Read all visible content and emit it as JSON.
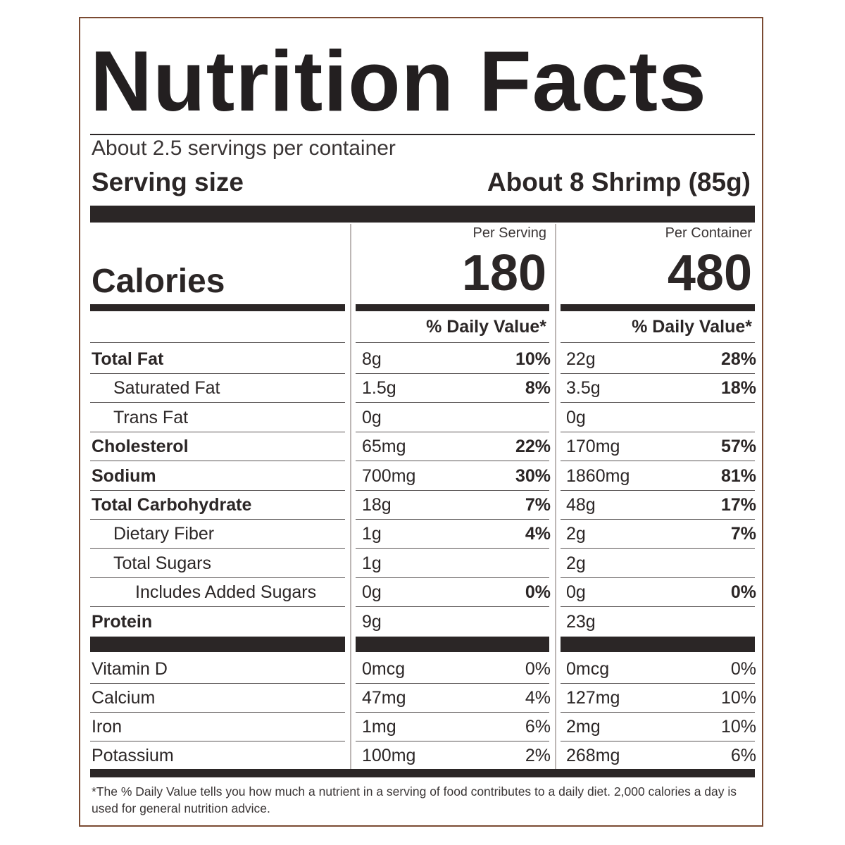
{
  "title": "Nutrition Facts",
  "servings_per_container": "About 2.5 servings per container",
  "serving_size_label": "Serving size",
  "serving_size_value": "About 8 Shrimp (85g)",
  "columns": {
    "per_serving": "Per Serving",
    "per_container": "Per Container"
  },
  "calories": {
    "label": "Calories",
    "per_serving": "180",
    "per_container": "480"
  },
  "daily_value_header": "% Daily Value*",
  "nutrients": [
    {
      "name": "Total Fat",
      "serving_amount": "8g",
      "serving_dv": "10%",
      "container_amount": "22g",
      "container_dv": "28%"
    },
    {
      "name": "Saturated Fat",
      "serving_amount": "1.5g",
      "serving_dv": "8%",
      "container_amount": "3.5g",
      "container_dv": "18%"
    },
    {
      "name": "Trans Fat",
      "serving_amount": "0g",
      "serving_dv": "",
      "container_amount": "0g",
      "container_dv": ""
    },
    {
      "name": "Cholesterol",
      "serving_amount": "65mg",
      "serving_dv": "22%",
      "container_amount": "170mg",
      "container_dv": "57%"
    },
    {
      "name": "Sodium",
      "serving_amount": "700mg",
      "serving_dv": "30%",
      "container_amount": "1860mg",
      "container_dv": "81%"
    },
    {
      "name": "Total Carbohydrate",
      "serving_amount": "18g",
      "serving_dv": "7%",
      "container_amount": "48g",
      "container_dv": "17%"
    },
    {
      "name": "Dietary Fiber",
      "serving_amount": "1g",
      "serving_dv": "4%",
      "container_amount": "2g",
      "container_dv": "7%"
    },
    {
      "name": "Total Sugars",
      "serving_amount": "1g",
      "serving_dv": "",
      "container_amount": "2g",
      "container_dv": ""
    },
    {
      "name": "Includes Added Sugars",
      "serving_amount": "0g",
      "serving_dv": "0%",
      "container_amount": "0g",
      "container_dv": "0%"
    },
    {
      "name": "Protein",
      "serving_amount": "9g",
      "serving_dv": "",
      "container_amount": "23g",
      "container_dv": ""
    }
  ],
  "vitamins": [
    {
      "name": "Vitamin D",
      "serving_amount": "0mcg",
      "serving_dv": "0%",
      "container_amount": "0mcg",
      "container_dv": "0%"
    },
    {
      "name": "Calcium",
      "serving_amount": "47mg",
      "serving_dv": "4%",
      "container_amount": "127mg",
      "container_dv": "10%"
    },
    {
      "name": "Iron",
      "serving_amount": "1mg",
      "serving_dv": "6%",
      "container_amount": "2mg",
      "container_dv": "10%"
    },
    {
      "name": "Potassium",
      "serving_amount": "100mg",
      "serving_dv": "2%",
      "container_amount": "268mg",
      "container_dv": "6%"
    }
  ],
  "footnote": "*The % Daily Value tells you how much a nutrient in a serving of food contributes to a daily diet. 2,000 calories a day is used for general nutrition advice."
}
